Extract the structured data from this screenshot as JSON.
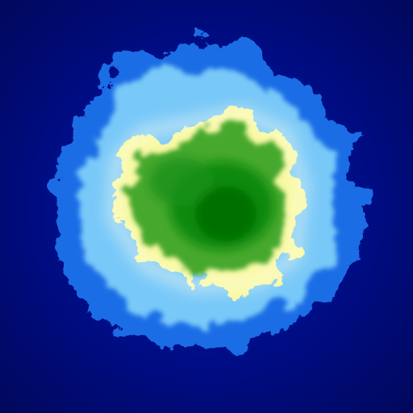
{
  "map": {
    "kind": "procedural-island-heightmap",
    "palette": {
      "deep_water": "#00085c",
      "water": "#0014a8",
      "shallow_water": "#1e78f0",
      "shoal": "#78c8f8",
      "beach": "#f8f8a0",
      "lowland": "#46a82e",
      "highland": "#007a00"
    }
  }
}
